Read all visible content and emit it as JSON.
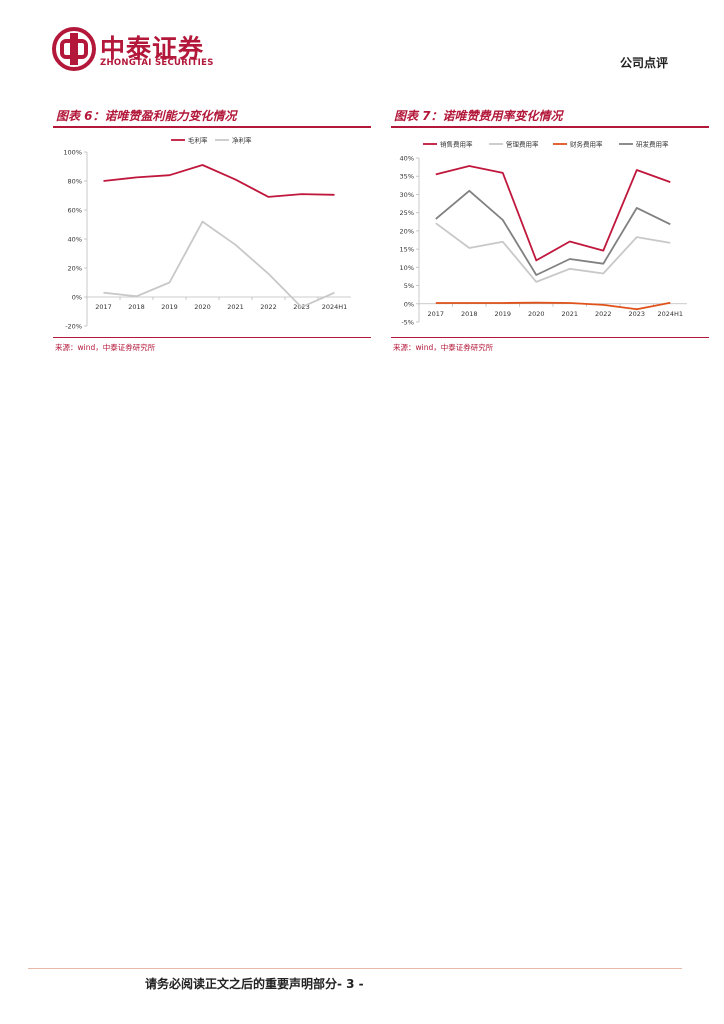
{
  "header": {
    "brand_cn": "中泰证券",
    "brand_en": "ZHONGTAI SECURITIES",
    "doc_type": "公司点评"
  },
  "figures": [
    {
      "title": "图表 6：诺唯赞盈利能力变化情况",
      "source": "来源：wind，中泰证券研究所"
    },
    {
      "title": "图表 7：诺唯赞费用率变化情况",
      "source": "来源：wind，中泰证券研究所"
    }
  ],
  "chart_data": [
    {
      "type": "line",
      "x": [
        "2017",
        "2018",
        "2019",
        "2020",
        "2021",
        "2022",
        "2023",
        "2024H1"
      ],
      "y_ticks": [
        "-20%",
        "0%",
        "20%",
        "40%",
        "60%",
        "80%",
        "100%"
      ],
      "ylim": [
        -20,
        100
      ],
      "series": [
        {
          "name": "毛利率",
          "values": [
            80,
            82.5,
            84,
            91,
            81,
            69,
            71,
            70.5
          ],
          "color": "#c0173d"
        },
        {
          "name": "净利率",
          "values": [
            3,
            0.5,
            10,
            52,
            36,
            16,
            -7,
            3
          ],
          "color": "#c8c8c8"
        }
      ],
      "legend": "top",
      "grid": false
    },
    {
      "type": "line",
      "x": [
        "2017",
        "2018",
        "2019",
        "2020",
        "2021",
        "2022",
        "2023",
        "2024H1"
      ],
      "y_ticks": [
        "-5%",
        "0%",
        "5%",
        "10%",
        "15%",
        "20%",
        "25%",
        "30%",
        "35%",
        "40%"
      ],
      "ylim": [
        -5,
        40
      ],
      "series": [
        {
          "name": "销售费用率",
          "values": [
            35.5,
            37.8,
            35.9,
            11.9,
            17.1,
            14.6,
            36.7,
            33.4
          ],
          "color": "#c0173d"
        },
        {
          "name": "管理费用率",
          "values": [
            22.1,
            15.3,
            17.0,
            6.0,
            9.6,
            8.3,
            18.3,
            16.7
          ],
          "color": "#c8c8c8"
        },
        {
          "name": "财务费用率",
          "values": [
            0.2,
            0.2,
            0.2,
            0.3,
            0.2,
            -0.3,
            -1.5,
            0.3
          ],
          "color": "#e0521a"
        },
        {
          "name": "研发费用率",
          "values": [
            23.3,
            31.0,
            23.0,
            7.9,
            12.3,
            11.0,
            26.3,
            21.8
          ],
          "color": "#808080"
        }
      ],
      "legend": "top",
      "grid": false
    }
  ],
  "footer": {
    "text": "请务必阅读正文之后的重要声明部分- 3 -"
  }
}
